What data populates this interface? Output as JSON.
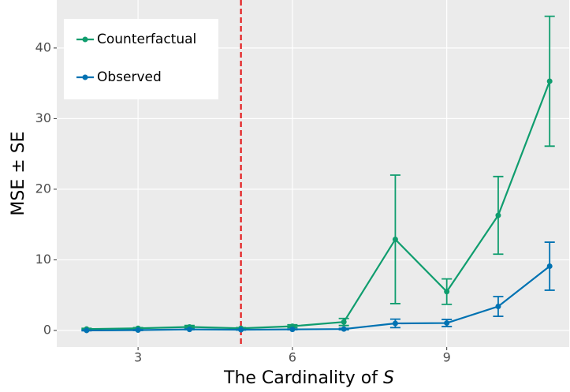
{
  "chart_data": {
    "type": "line",
    "xlabel_parts": [
      "The Cardinality of",
      "S"
    ],
    "ylabel": "MSE ± SE",
    "x": [
      2,
      3,
      4,
      5,
      6,
      7,
      8,
      9,
      10,
      11
    ],
    "series": [
      {
        "name": "Counterfactual",
        "color": "#0f9d6e",
        "values": [
          0.2,
          0.3,
          0.5,
          0.3,
          0.6,
          1.2,
          12.9,
          5.5,
          16.3,
          35.3
        ],
        "errors": [
          0.1,
          0.1,
          0.2,
          0.1,
          0.2,
          0.5,
          9.1,
          1.8,
          5.5,
          9.2
        ]
      },
      {
        "name": "Observed",
        "color": "#0072b2",
        "values": [
          0.0,
          0.05,
          0.15,
          0.1,
          0.15,
          0.2,
          1.0,
          1.05,
          3.4,
          9.1
        ],
        "errors": [
          0.05,
          0.05,
          0.05,
          0.05,
          0.05,
          0.1,
          0.6,
          0.5,
          1.4,
          3.4
        ]
      }
    ],
    "vline": 5,
    "vline_color": "#e41a1c",
    "xlim": [
      1.42,
      11.38
    ],
    "xticks": [
      3,
      6,
      9
    ],
    "ylim": [
      -2.35,
      46.8
    ],
    "yticks": [
      0,
      10,
      20,
      30,
      40
    ],
    "grid": true,
    "legend": "top-left"
  }
}
